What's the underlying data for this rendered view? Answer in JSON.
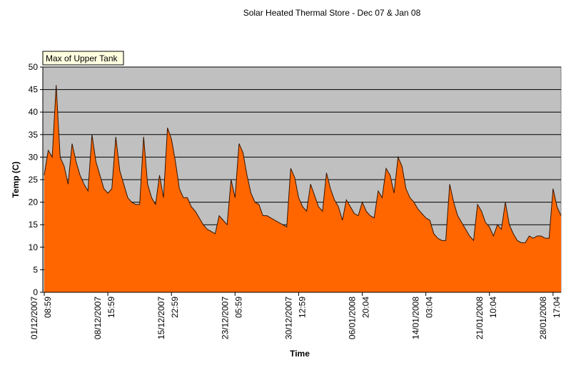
{
  "chart_data": {
    "type": "area",
    "title": "Solar Heated Thermal Store - Dec 07 & Jan 08",
    "xlabel": "Time",
    "ylabel": "Temp (C)",
    "categories": [
      [
        "01/12/2007",
        "08:59"
      ],
      null,
      null,
      null,
      null,
      null,
      null,
      null,
      null,
      null,
      null,
      null,
      null,
      null,
      null,
      null,
      [
        "08/12/2007",
        "15:59"
      ],
      null,
      null,
      null,
      null,
      null,
      null,
      null,
      null,
      null,
      null,
      null,
      null,
      null,
      null,
      null,
      [
        "15/12/2007",
        "22:59"
      ],
      null,
      null,
      null,
      null,
      null,
      null,
      null,
      null,
      null,
      null,
      null,
      null,
      null,
      null,
      null,
      [
        "23/12/2007",
        "05:59"
      ],
      null,
      null,
      null,
      null,
      null,
      null,
      null,
      null,
      null,
      null,
      null,
      null,
      null,
      null,
      null,
      [
        "30/12/2007",
        "12:59"
      ],
      null,
      null,
      null,
      null,
      null,
      null,
      null,
      null,
      null,
      null,
      null,
      null,
      null,
      null,
      null,
      [
        "06/01/2008",
        "20:04"
      ],
      null,
      null,
      null,
      null,
      null,
      null,
      null,
      null,
      null,
      null,
      null,
      null,
      null,
      null,
      null,
      [
        "14/01/2008",
        "03:04"
      ],
      null,
      null,
      null,
      null,
      null,
      null,
      null,
      null,
      null,
      null,
      null,
      null,
      null,
      null,
      null,
      [
        "21/01/2008",
        "10:04"
      ],
      null,
      null,
      null,
      null,
      null,
      null,
      null,
      null,
      null,
      null,
      null,
      null,
      null,
      null,
      null,
      [
        "28/01/2008",
        "17:04"
      ],
      null,
      null
    ],
    "series": [
      {
        "name": "Max of Upper Tank",
        "color": "#ff6600",
        "values": [
          26,
          31.5,
          30,
          46,
          30,
          28,
          24,
          33,
          29,
          26,
          24,
          22.5,
          35,
          29,
          26,
          23,
          22,
          23,
          34.5,
          27,
          24,
          21,
          20,
          19.5,
          19.5,
          34.5,
          24,
          21,
          19.5,
          26,
          21,
          36.5,
          34,
          29,
          23,
          21,
          21,
          19,
          18,
          16.5,
          15,
          14,
          13.5,
          13,
          17,
          16,
          15,
          25,
          21,
          33,
          31,
          26,
          22,
          20,
          19.5,
          17,
          17,
          16.5,
          16,
          15.5,
          15,
          14.5,
          27.5,
          25.5,
          21,
          19,
          18,
          24,
          21.5,
          19,
          18,
          26.5,
          23,
          20.5,
          19,
          16,
          20.5,
          19,
          17.5,
          17,
          20,
          18,
          17,
          16.5,
          22.5,
          21,
          27.5,
          26,
          22,
          30,
          28,
          23,
          21,
          20,
          18.5,
          17.5,
          16.5,
          16,
          13,
          12,
          11.5,
          11.5,
          24,
          20,
          17,
          15.5,
          14,
          12.5,
          11.5,
          19.5,
          18,
          15.5,
          14.5,
          12.5,
          15,
          14,
          20,
          15,
          13,
          11.5,
          11,
          11,
          12.5,
          12,
          12.5,
          12.5,
          12,
          12,
          23,
          19,
          17
        ]
      }
    ],
    "ylim": [
      0,
      50
    ],
    "yticks": [
      0,
      5,
      10,
      15,
      20,
      25,
      30,
      35,
      40,
      45,
      50
    ],
    "grid": true,
    "plot_background": "#c0c0c0"
  }
}
